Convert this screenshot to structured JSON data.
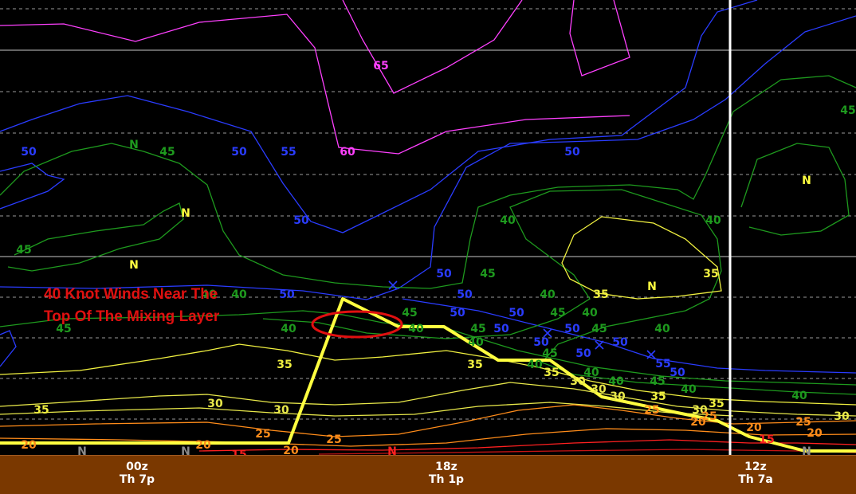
{
  "chart_data": {
    "type": "contour",
    "title": "",
    "xlabel": "",
    "ylabel": "",
    "time_ticks": [
      {
        "id": "t00z",
        "top": "00z",
        "bottom": "Th 7p"
      },
      {
        "id": "t18z",
        "top": "18z",
        "bottom": "Th 1p"
      },
      {
        "id": "t12z",
        "top": "12z",
        "bottom": "Th 7a"
      }
    ],
    "contour_values_kt": [
      20,
      25,
      30,
      35,
      40,
      45,
      50,
      55,
      60,
      65
    ],
    "contour_labels": [
      {
        "text": "65",
        "color": "#ff40ff"
      },
      {
        "text": "60",
        "color": "#ff40ff"
      },
      {
        "text": "50",
        "color": "#2a3cff"
      },
      {
        "text": "55",
        "color": "#2a3cff"
      },
      {
        "text": "50",
        "color": "#2a3cff"
      },
      {
        "text": "50",
        "color": "#2a3cff"
      },
      {
        "text": "50",
        "color": "#2a3cff"
      },
      {
        "text": "50",
        "color": "#2a3cff"
      },
      {
        "text": "50",
        "color": "#2a3cff"
      },
      {
        "text": "50",
        "color": "#2a3cff"
      },
      {
        "text": "50",
        "color": "#2a3cff"
      },
      {
        "text": "50",
        "color": "#2a3cff"
      },
      {
        "text": "50",
        "color": "#2a3cff"
      },
      {
        "text": "50",
        "color": "#2a3cff"
      },
      {
        "text": "50",
        "color": "#2a3cff"
      },
      {
        "text": "50",
        "color": "#2a3cff"
      },
      {
        "text": "50",
        "color": "#2a3cff"
      },
      {
        "text": "55",
        "color": "#2a3cff"
      },
      {
        "text": "50",
        "color": "#2a3cff"
      },
      {
        "text": "45",
        "color": "#1e9a1e"
      },
      {
        "text": "45",
        "color": "#1e9a1e"
      },
      {
        "text": "45",
        "color": "#1e9a1e"
      },
      {
        "text": "45",
        "color": "#1e9a1e"
      },
      {
        "text": "45",
        "color": "#1e9a1e"
      },
      {
        "text": "45",
        "color": "#1e9a1e"
      },
      {
        "text": "45",
        "color": "#1e9a1e"
      },
      {
        "text": "45",
        "color": "#1e9a1e"
      },
      {
        "text": "45",
        "color": "#1e9a1e"
      },
      {
        "text": "45",
        "color": "#1e9a1e"
      },
      {
        "text": "45",
        "color": "#1e9a1e"
      },
      {
        "text": "40",
        "color": "#1e9a1e"
      },
      {
        "text": "40",
        "color": "#1e9a1e"
      },
      {
        "text": "40",
        "color": "#1e9a1e"
      },
      {
        "text": "40",
        "color": "#1e9a1e"
      },
      {
        "text": "40",
        "color": "#1e9a1e"
      },
      {
        "text": "40",
        "color": "#1e9a1e"
      },
      {
        "text": "40",
        "color": "#1e9a1e"
      },
      {
        "text": "40",
        "color": "#1e9a1e"
      },
      {
        "text": "40",
        "color": "#1e9a1e"
      },
      {
        "text": "40",
        "color": "#1e9a1e"
      },
      {
        "text": "40",
        "color": "#1e9a1e"
      },
      {
        "text": "40",
        "color": "#1e9a1e"
      },
      {
        "text": "40",
        "color": "#1e9a1e"
      },
      {
        "text": "40",
        "color": "#1e9a1e"
      },
      {
        "text": "40",
        "color": "#1e9a1e"
      },
      {
        "text": "35",
        "color": "#f0f040"
      },
      {
        "text": "35",
        "color": "#f0f040"
      },
      {
        "text": "35",
        "color": "#f0f040"
      },
      {
        "text": "35",
        "color": "#f0f040"
      },
      {
        "text": "35",
        "color": "#f0f040"
      },
      {
        "text": "35",
        "color": "#f0f040"
      },
      {
        "text": "35",
        "color": "#f0f040"
      },
      {
        "text": "35",
        "color": "#f0f040"
      },
      {
        "text": "30",
        "color": "#e8e84a"
      },
      {
        "text": "30",
        "color": "#e8e84a"
      },
      {
        "text": "30",
        "color": "#e8e84a"
      },
      {
        "text": "30",
        "color": "#e8e84a"
      },
      {
        "text": "30",
        "color": "#e8e84a"
      },
      {
        "text": "30",
        "color": "#e8e84a"
      },
      {
        "text": "30",
        "color": "#e8e84a"
      },
      {
        "text": "25",
        "color": "#ff8c1a"
      },
      {
        "text": "25",
        "color": "#ff8c1a"
      },
      {
        "text": "25",
        "color": "#ff8c1a"
      },
      {
        "text": "25",
        "color": "#ff8c1a"
      },
      {
        "text": "25",
        "color": "#ff8c1a"
      },
      {
        "text": "20",
        "color": "#ff8c1a"
      },
      {
        "text": "20",
        "color": "#ff8c1a"
      },
      {
        "text": "20",
        "color": "#ff8c1a"
      },
      {
        "text": "20",
        "color": "#ff8c1a"
      },
      {
        "text": "20",
        "color": "#ff8c1a"
      },
      {
        "text": "20",
        "color": "#ff8c1a"
      },
      {
        "text": "15",
        "color": "#ff2020"
      },
      {
        "text": "15",
        "color": "#ff2020"
      },
      {
        "text": "N",
        "color": "#ffff40"
      },
      {
        "text": "N",
        "color": "#ffff40"
      },
      {
        "text": "N",
        "color": "#ffff40"
      },
      {
        "text": "N",
        "color": "#ffff40"
      },
      {
        "text": "N",
        "color": "#1e9a1e"
      },
      {
        "text": "N",
        "color": "#8a8a8a"
      },
      {
        "text": "N",
        "color": "#8a8a8a"
      },
      {
        "text": "N",
        "color": "#ff2020"
      },
      {
        "text": "N",
        "color": "#8a8a8a"
      }
    ],
    "annotation": {
      "line1": "40 Knot Winds Near The",
      "line2": "Top Of The Mixing Layer",
      "color": "#e01010"
    },
    "colors": {
      "background": "#000000",
      "time_axis_bg": "#7a3800",
      "mixing_layer_line": "#ffff40",
      "highlight_ellipse": "#e01010",
      "current_time_line": "#ffffff",
      "grid": "#9a9a9a"
    }
  }
}
